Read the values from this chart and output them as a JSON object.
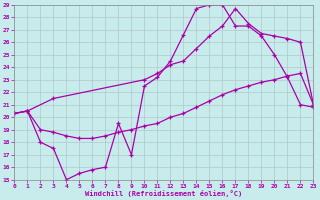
{
  "xlabel": "Windchill (Refroidissement éolien,°C)",
  "bg_color": "#c8ecec",
  "grid_color": "#b0c8c8",
  "line_color": "#aa00aa",
  "xlim": [
    0,
    23
  ],
  "ylim": [
    15,
    29
  ],
  "xticks": [
    0,
    1,
    2,
    3,
    4,
    5,
    6,
    7,
    8,
    9,
    10,
    11,
    12,
    13,
    14,
    15,
    16,
    17,
    18,
    19,
    20,
    21,
    22,
    23
  ],
  "yticks": [
    15,
    16,
    17,
    18,
    19,
    20,
    21,
    22,
    23,
    24,
    25,
    26,
    27,
    28,
    29
  ],
  "line1_x": [
    0,
    1,
    2,
    3,
    4,
    5,
    6,
    7,
    8,
    9,
    10,
    11,
    12,
    13,
    14,
    15,
    16,
    17,
    18,
    19,
    20,
    21,
    22,
    23
  ],
  "line1_y": [
    20.3,
    20.5,
    18.0,
    17.5,
    15.0,
    15.5,
    15.8,
    16.0,
    19.5,
    17.0,
    22.5,
    23.2,
    24.5,
    26.6,
    28.7,
    29.0,
    29.0,
    27.3,
    27.3,
    26.5,
    25.0,
    23.2,
    21.0,
    20.8
  ],
  "line2_x": [
    0,
    1,
    3,
    10,
    11,
    12,
    13,
    14,
    15,
    16,
    17,
    18,
    19,
    20,
    21,
    22,
    23
  ],
  "line2_y": [
    20.3,
    20.5,
    21.5,
    23.0,
    23.5,
    24.2,
    24.5,
    25.5,
    26.5,
    27.3,
    28.7,
    27.5,
    26.7,
    26.5,
    26.3,
    26.0,
    21.0
  ],
  "line3_x": [
    0,
    1,
    2,
    3,
    4,
    5,
    6,
    7,
    8,
    9,
    10,
    11,
    12,
    13,
    14,
    15,
    16,
    17,
    18,
    19,
    20,
    21,
    22,
    23
  ],
  "line3_y": [
    20.3,
    20.5,
    19.0,
    18.8,
    18.5,
    18.3,
    18.3,
    18.5,
    18.8,
    19.0,
    19.3,
    19.5,
    20.0,
    20.3,
    20.8,
    21.3,
    21.8,
    22.2,
    22.5,
    22.8,
    23.0,
    23.3,
    23.5,
    21.0
  ]
}
